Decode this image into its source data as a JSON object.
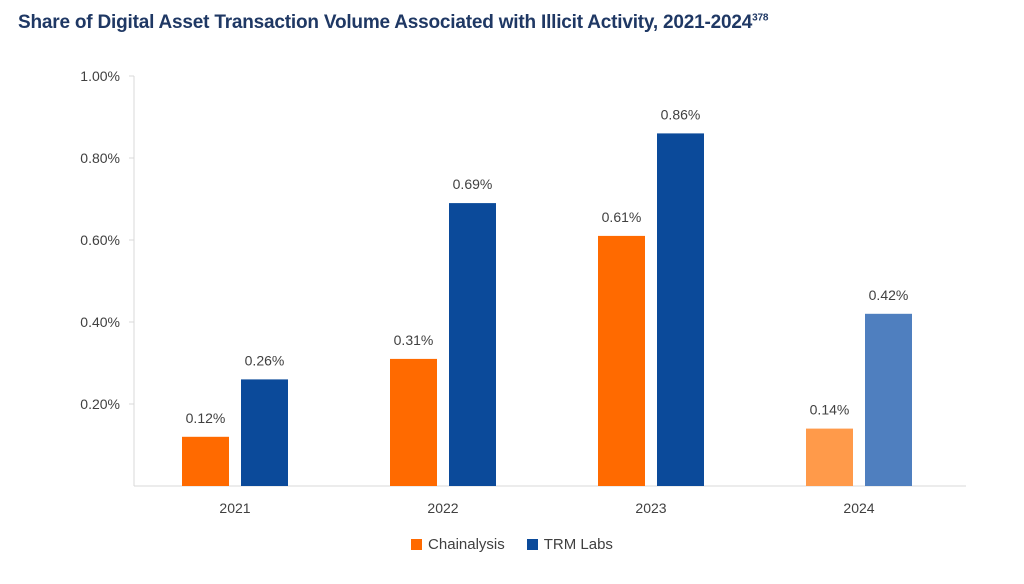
{
  "title": "Share of Digital Asset Transaction Volume Associated with Illicit Activity, 2021-2024",
  "footnote": "378",
  "chart_data": {
    "type": "bar",
    "categories": [
      "2021",
      "2022",
      "2023",
      "2024"
    ],
    "series": [
      {
        "name": "Chainalysis",
        "values": [
          0.12,
          0.31,
          0.61,
          0.14
        ],
        "labels": [
          "0.12%",
          "0.31%",
          "0.61%",
          "0.14%"
        ],
        "color": "#ff6a00",
        "last_color": "#ff9a4a"
      },
      {
        "name": "TRM Labs",
        "values": [
          0.26,
          0.69,
          0.86,
          0.42
        ],
        "labels": [
          "0.26%",
          "0.69%",
          "0.86%",
          "0.42%"
        ],
        "color": "#0b4a9a",
        "last_color": "#4f7fbf"
      }
    ],
    "yticks": [
      "0.20%",
      "0.40%",
      "0.60%",
      "0.80%",
      "1.00%"
    ],
    "ytick_values": [
      0.2,
      0.4,
      0.6,
      0.8,
      1.0
    ],
    "ylim": [
      0,
      1.0
    ],
    "legend_position": "bottom-center"
  }
}
